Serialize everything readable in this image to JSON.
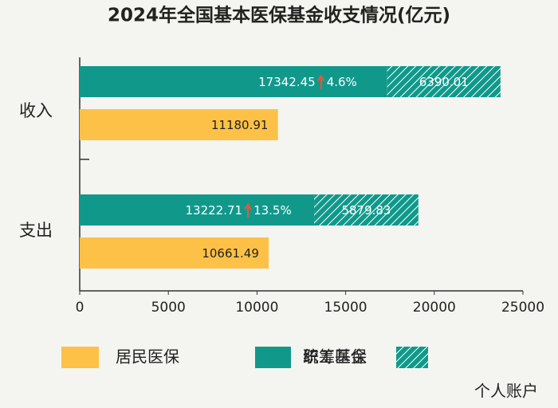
{
  "chart_data": {
    "type": "bar",
    "orientation": "horizontal",
    "title": "2024年全国基本医保基金收支情况(亿元)",
    "categories": [
      "收入",
      "支出"
    ],
    "series": [
      {
        "name": "统筹基金",
        "color": "#10998b",
        "stack": "职工医保",
        "values": [
          17342.45,
          13222.71
        ]
      },
      {
        "name": "个人账户",
        "color": "#10998b",
        "hatch": true,
        "stack": "职工医保",
        "values": [
          6390.01,
          5879.83
        ]
      },
      {
        "name": "居民医保",
        "color": "#fcc146",
        "stack": "居民医保",
        "values": [
          11180.91,
          10661.49
        ]
      }
    ],
    "growth_labels": [
      "4.6%",
      "13.5%"
    ],
    "legend_group": "职工医保",
    "xlim": [
      0,
      25000
    ],
    "xticks": [
      0,
      5000,
      10000,
      15000,
      20000,
      25000
    ]
  }
}
